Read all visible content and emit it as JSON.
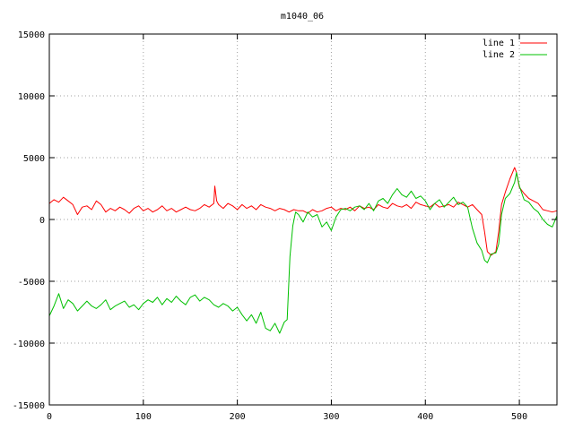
{
  "chart_data": {
    "type": "line",
    "title": "m1040_06",
    "xlabel": "",
    "ylabel": "",
    "xlim": [
      0,
      540
    ],
    "ylim": [
      -15000,
      15000
    ],
    "xticks": [
      0,
      100,
      200,
      300,
      400,
      500
    ],
    "yticks": [
      -15000,
      -10000,
      -5000,
      0,
      5000,
      10000,
      15000
    ],
    "grid": true,
    "legend_position": "top-right",
    "series": [
      {
        "name": "line 1",
        "color": "#ff0000",
        "x": [
          0,
          5,
          10,
          15,
          20,
          25,
          30,
          35,
          40,
          45,
          50,
          55,
          60,
          65,
          70,
          75,
          80,
          85,
          90,
          95,
          100,
          105,
          110,
          115,
          120,
          125,
          130,
          135,
          140,
          145,
          150,
          155,
          160,
          165,
          170,
          175,
          176,
          178,
          180,
          185,
          190,
          195,
          200,
          205,
          210,
          215,
          220,
          225,
          230,
          235,
          240,
          245,
          250,
          255,
          260,
          265,
          270,
          275,
          280,
          285,
          290,
          295,
          300,
          305,
          310,
          315,
          320,
          325,
          330,
          335,
          340,
          345,
          350,
          355,
          360,
          365,
          370,
          375,
          380,
          385,
          390,
          395,
          400,
          405,
          410,
          415,
          420,
          425,
          430,
          435,
          440,
          445,
          450,
          455,
          460,
          463,
          466,
          470,
          475,
          478,
          481,
          485,
          490,
          495,
          497,
          500,
          505,
          510,
          515,
          520,
          525,
          530,
          535,
          540
        ],
        "y": [
          1300,
          1600,
          1400,
          1800,
          1500,
          1200,
          400,
          1000,
          1100,
          800,
          1500,
          1200,
          600,
          900,
          700,
          1000,
          800,
          500,
          900,
          1100,
          700,
          900,
          600,
          800,
          1100,
          700,
          900,
          600,
          800,
          1000,
          800,
          700,
          900,
          1200,
          1000,
          1300,
          2700,
          1500,
          1200,
          900,
          1300,
          1100,
          800,
          1200,
          900,
          1100,
          800,
          1200,
          1000,
          900,
          700,
          900,
          800,
          600,
          800,
          700,
          700,
          500,
          800,
          600,
          700,
          900,
          1000,
          700,
          900,
          800,
          1000,
          700,
          1100,
          900,
          1000,
          800,
          1200,
          1000,
          900,
          1300,
          1100,
          1000,
          1200,
          900,
          1400,
          1200,
          1100,
          1000,
          1300,
          1000,
          1100,
          1200,
          1000,
          1400,
          1200,
          1000,
          1200,
          800,
          400,
          -1000,
          -2600,
          -2900,
          -2600,
          -1000,
          1200,
          2200,
          3300,
          4200,
          3800,
          2600,
          2100,
          1700,
          1500,
          1300,
          800,
          700,
          600,
          700
        ]
      },
      {
        "name": "line 2",
        "color": "#00c000",
        "x": [
          0,
          5,
          10,
          15,
          20,
          25,
          30,
          35,
          40,
          45,
          50,
          55,
          60,
          65,
          70,
          75,
          80,
          85,
          90,
          95,
          100,
          105,
          110,
          115,
          120,
          125,
          130,
          135,
          140,
          145,
          150,
          155,
          160,
          165,
          170,
          175,
          180,
          185,
          190,
          195,
          200,
          205,
          210,
          215,
          220,
          225,
          230,
          235,
          240,
          245,
          250,
          253,
          256,
          259,
          262,
          265,
          270,
          275,
          280,
          285,
          290,
          295,
          300,
          305,
          310,
          315,
          320,
          325,
          330,
          335,
          340,
          345,
          350,
          355,
          360,
          365,
          370,
          375,
          380,
          385,
          390,
          395,
          400,
          405,
          410,
          415,
          420,
          425,
          430,
          435,
          440,
          445,
          450,
          455,
          460,
          463,
          466,
          470,
          475,
          478,
          481,
          485,
          490,
          495,
          497,
          500,
          505,
          510,
          515,
          520,
          525,
          530,
          535,
          540
        ],
        "y": [
          -7800,
          -7000,
          -6000,
          -7200,
          -6500,
          -6800,
          -7400,
          -7000,
          -6600,
          -7000,
          -7200,
          -6900,
          -6500,
          -7300,
          -7000,
          -6800,
          -6600,
          -7100,
          -6900,
          -7300,
          -6800,
          -6500,
          -6700,
          -6300,
          -6900,
          -6400,
          -6700,
          -6200,
          -6600,
          -6900,
          -6300,
          -6100,
          -6600,
          -6300,
          -6500,
          -6900,
          -7100,
          -6800,
          -7000,
          -7400,
          -7100,
          -7700,
          -8200,
          -7700,
          -8400,
          -7500,
          -8800,
          -9000,
          -8400,
          -9200,
          -8300,
          -8100,
          -3000,
          -500,
          600,
          400,
          -200,
          600,
          200,
          400,
          -600,
          -200,
          -900,
          200,
          800,
          900,
          700,
          1000,
          1100,
          800,
          1300,
          700,
          1500,
          1700,
          1300,
          2000,
          2500,
          2000,
          1800,
          2300,
          1700,
          1900,
          1500,
          800,
          1300,
          1600,
          1000,
          1400,
          1800,
          1200,
          1400,
          1000,
          -700,
          -1900,
          -2500,
          -3300,
          -3500,
          -2800,
          -2700,
          -2000,
          400,
          1700,
          2100,
          3000,
          3800,
          2700,
          1600,
          1400,
          900,
          600,
          0,
          -400,
          -600,
          300
        ]
      }
    ]
  }
}
